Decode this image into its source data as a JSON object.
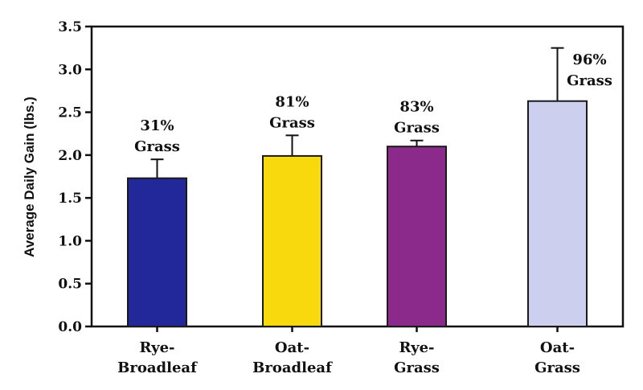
{
  "chart_data": {
    "type": "bar",
    "title": "",
    "xlabel": "",
    "ylabel": "Average Daily Gain (lbs.)",
    "ylim": [
      0,
      3.5
    ],
    "yticks": [
      "0.0",
      "0.5",
      "1.0",
      "1.5",
      "2.0",
      "2.5",
      "3.0",
      "3.5"
    ],
    "grid": false,
    "legend": null,
    "categories": [
      "Rye-Broadleaf",
      "Oat-Broadleaf",
      "Rye-Grass",
      "Oat-Grass"
    ],
    "category_lines": [
      [
        "Rye-",
        "Broadleaf"
      ],
      [
        "Oat-",
        "Broadleaf"
      ],
      [
        "Rye-",
        "Grass"
      ],
      [
        "Oat-",
        "Grass"
      ]
    ],
    "values": [
      1.73,
      1.99,
      2.1,
      2.63
    ],
    "error_upper": [
      1.95,
      2.23,
      2.17,
      3.25
    ],
    "annotations": [
      [
        "31%",
        "Grass"
      ],
      [
        "81%",
        "Grass"
      ],
      [
        "83%",
        "Grass"
      ],
      [
        "96%",
        "Grass"
      ]
    ],
    "colors": [
      "#22279a",
      "#f7d90e",
      "#8b2a8a",
      "#ccd0ee"
    ]
  }
}
